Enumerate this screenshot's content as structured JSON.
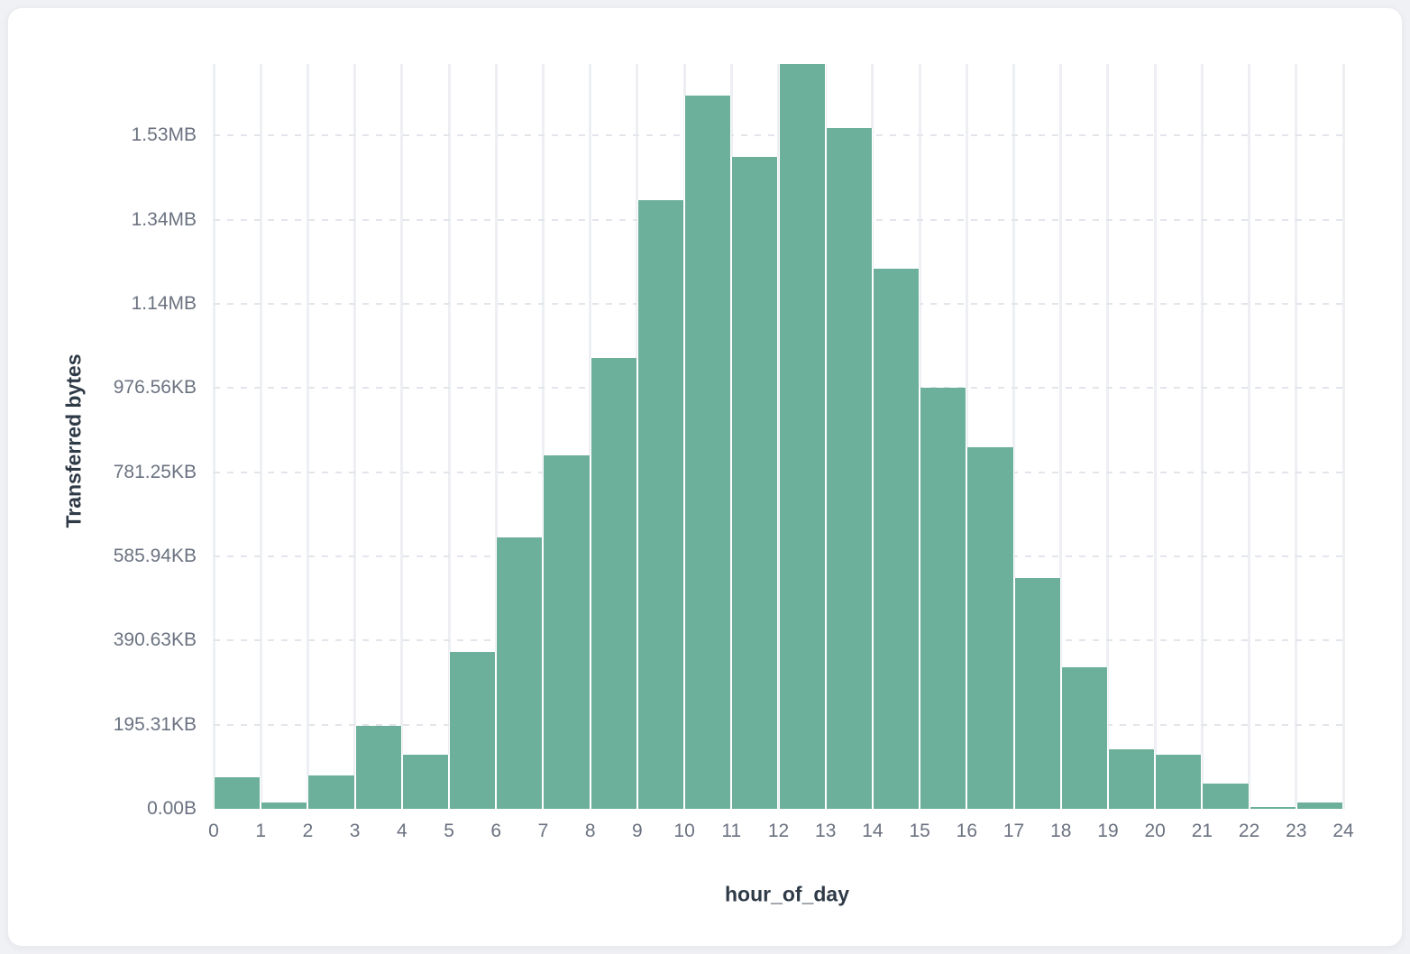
{
  "chart_data": {
    "type": "bar",
    "title": "",
    "xlabel": "hour_of_day",
    "ylabel": "Transferred bytes",
    "unit": "bytes",
    "categories": [
      0,
      1,
      2,
      3,
      4,
      5,
      6,
      7,
      8,
      9,
      10,
      11,
      12,
      13,
      14,
      15,
      16,
      17,
      18,
      19,
      20,
      21,
      22,
      23
    ],
    "values": [
      75000,
      16000,
      79000,
      197000,
      129000,
      372000,
      645000,
      841000,
      1071000,
      1446000,
      1695000,
      1549000,
      1770000,
      1617000,
      1284000,
      1000000,
      859000,
      549000,
      336000,
      142000,
      128000,
      59000,
      5000,
      14000
    ],
    "xlim": [
      0,
      24
    ],
    "ylim": [
      0,
      1770000
    ],
    "x_ticks": [
      "0",
      "1",
      "2",
      "3",
      "4",
      "5",
      "6",
      "7",
      "8",
      "9",
      "10",
      "11",
      "12",
      "13",
      "14",
      "15",
      "16",
      "17",
      "18",
      "19",
      "20",
      "21",
      "22",
      "23",
      "24"
    ],
    "y_ticks": [
      {
        "bytes": 0,
        "label": "0.00B"
      },
      {
        "bytes": 200000,
        "label": "195.31KB"
      },
      {
        "bytes": 400000,
        "label": "390.63KB"
      },
      {
        "bytes": 600000,
        "label": "585.94KB"
      },
      {
        "bytes": 800000,
        "label": "781.25KB"
      },
      {
        "bytes": 1000000,
        "label": "976.56KB"
      },
      {
        "bytes": 1200000,
        "label": "1.14MB"
      },
      {
        "bytes": 1400000,
        "label": "1.34MB"
      },
      {
        "bytes": 1600000,
        "label": "1.53MB"
      }
    ],
    "grid": {
      "vertical": "solid",
      "horizontal": "dashed",
      "legend": "none"
    },
    "colors": {
      "bar": "#6caf9a",
      "bar_gap": "#ffffff",
      "grid_vertical": "#edeff3",
      "grid_horizontal": "#e2e5eb",
      "tick_label": "#6b7280",
      "axis_title": "#2f3a47",
      "card_bg": "#ffffff",
      "page_bg": "#f0f1f4"
    }
  }
}
